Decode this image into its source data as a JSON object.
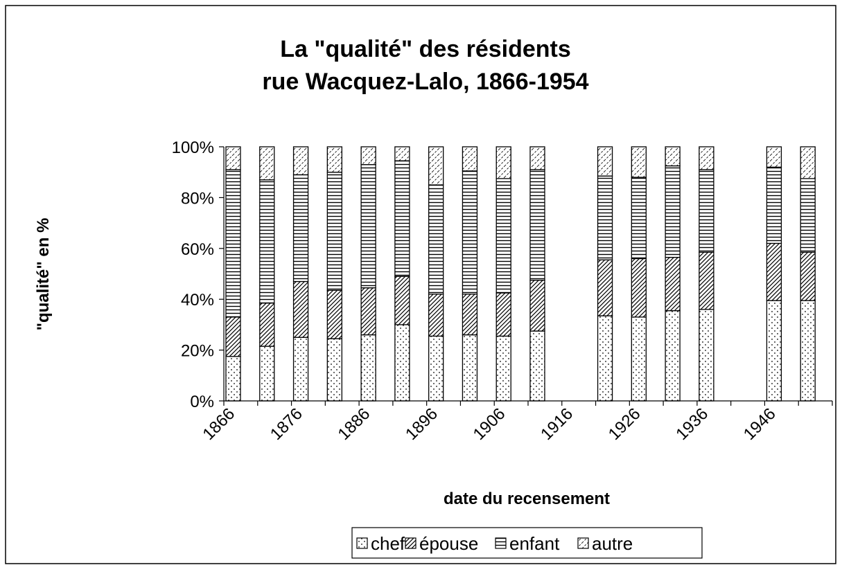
{
  "chart_data": {
    "type": "stacked_bar_100",
    "title": [
      "La \"qualité\" des résidents",
      "rue Wacquez-Lalo, 1866-1954"
    ],
    "x_label": "date du recensement",
    "y_label": "\"qualité\" en  %",
    "categories": [
      "1866",
      null,
      "1876",
      null,
      "1886",
      null,
      "1896",
      null,
      "1906",
      null,
      "1916",
      null,
      "1926",
      null,
      "1936",
      null,
      "1946",
      null
    ],
    "series": [
      {
        "name": "chef",
        "color": "#000000",
        "pattern": "dots",
        "values": [
          17.5,
          21.5,
          25,
          24.5,
          26,
          30,
          25.5,
          26,
          25.5,
          27.5,
          null,
          33.5,
          33,
          35.5,
          36,
          null,
          39.5,
          39.5
        ]
      },
      {
        "name": "épouse",
        "color": "#000000",
        "pattern": "diagonal",
        "values": [
          15.5,
          17,
          22,
          19,
          18.5,
          19,
          16.5,
          16,
          17,
          20,
          null,
          22,
          23,
          21,
          22.5,
          null,
          22.5,
          19
        ]
      },
      {
        "name": "enfant",
        "color": "#000000",
        "pattern": "horizontal",
        "values": [
          58,
          48.5,
          42,
          46.5,
          48.5,
          45.5,
          43,
          48.5,
          45,
          43.5,
          null,
          33,
          32,
          36,
          32.5,
          null,
          30,
          29
        ]
      },
      {
        "name": "autre",
        "color": "#000000",
        "pattern": "diagonal-light",
        "values": [
          9,
          13,
          11,
          10,
          7,
          5.5,
          15,
          9.5,
          12.5,
          9,
          null,
          11.5,
          12,
          7.5,
          9,
          null,
          8,
          12.5
        ]
      }
    ],
    "ylim": [
      0,
      100
    ],
    "yticks": [
      {
        "value": 0,
        "label": "0%"
      },
      {
        "value": 20,
        "label": "20%"
      },
      {
        "value": 40,
        "label": "40%"
      },
      {
        "value": 60,
        "label": "60%"
      },
      {
        "value": 80,
        "label": "80%"
      },
      {
        "value": 100,
        "label": "100%"
      }
    ],
    "grid": false,
    "legend": "bottom"
  }
}
